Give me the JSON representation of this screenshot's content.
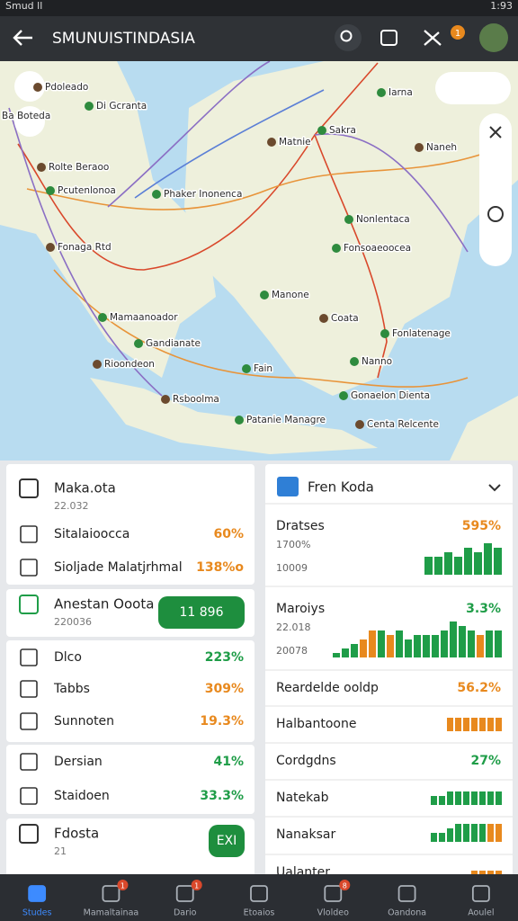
{
  "status_bar": {
    "carrier": "Smud ll",
    "time": "1:93"
  },
  "app_bar": {
    "title": "SMUNUISTINDASIA",
    "badge": "1"
  },
  "map": {
    "labels": [
      "Pdoleado",
      "Di Gcranta",
      "Ba Boteda",
      "Rolte Beraoo",
      "Pcutenlonoa",
      "Sakra",
      "Matnie",
      "Iarna",
      "Phaker Inonenca",
      "Naneh",
      "Nonlentaca",
      "Fonsoaeoocea",
      "Fonaga Rtd",
      "Manone",
      "Mamaanoador",
      "Coata",
      "Fonlatenage",
      "Gandianate",
      "Rioondeon",
      "Nanno",
      "Fain",
      "Rsboolma",
      "Gonaelon Dienta",
      "Patanie Managre",
      "Centa Relcente"
    ]
  },
  "left_cards": [
    {
      "title": "Maka.ota",
      "subtitle": "22.032",
      "rows": [
        {
          "label": "Sitalaioocca",
          "value": "60%",
          "color": "#e8891e"
        },
        {
          "label": "Sioljade Malatjrhmal",
          "value": "138%o",
          "color": "#e8891e"
        }
      ]
    },
    {
      "title": "Anestan Ooota",
      "subtitle": "220036",
      "button": "11 896"
    },
    {
      "rows": [
        {
          "label": "Dlco",
          "value": "223%",
          "color": "#1f9d48"
        },
        {
          "label": "Tabbs",
          "value": "309%",
          "color": "#e8891e"
        },
        {
          "label": "Sunnoten",
          "value": "19.3%",
          "color": "#e8891e"
        }
      ]
    },
    {
      "rows": [
        {
          "label": "Dersian",
          "value": "41%",
          "color": "#1f9d48"
        },
        {
          "label": "Staidoen",
          "value": "33.3%",
          "color": "#1f9d48"
        }
      ]
    },
    {
      "title": "Fdosta",
      "subtitle": "21",
      "button": "EXI"
    }
  ],
  "right_card": {
    "title": "Fren Koda",
    "items": [
      {
        "label": "Dratses",
        "value": "595%",
        "color": "#e8891e",
        "sub": [
          "1700%",
          "10009"
        ],
        "bars": [
          4,
          4,
          5,
          4,
          6,
          5,
          7,
          6
        ],
        "bar_colors": [
          "#1f9d48",
          "#1f9d48",
          "#1f9d48",
          "#1f9d48",
          "#1f9d48",
          "#1f9d48",
          "#1f9d48",
          "#1f9d48"
        ]
      },
      {
        "label": "Maroiys",
        "value": "3.3%",
        "color": "#1f9d48",
        "sub": [
          "22.018",
          "20078"
        ],
        "bars": [
          1,
          2,
          3,
          4,
          6,
          6,
          5,
          6,
          4,
          5,
          5,
          5,
          6,
          8,
          7,
          6,
          5,
          6,
          6
        ],
        "bar_colors": [
          "#1f9d48",
          "#1f9d48",
          "#1f9d48",
          "#e8891e",
          "#e8891e",
          "#1f9d48",
          "#e8891e",
          "#1f9d48",
          "#1f9d48",
          "#1f9d48",
          "#1f9d48",
          "#1f9d48",
          "#1f9d48",
          "#1f9d48",
          "#1f9d48",
          "#1f9d48",
          "#e8891e",
          "#1f9d48",
          "#1f9d48"
        ]
      },
      {
        "label": "Reardelde ooldp",
        "value": "56.2%",
        "color": "#e8891e"
      },
      {
        "label": "Halbantoone",
        "bars": [
          3,
          3,
          3,
          3,
          3,
          3,
          3
        ],
        "bar_colors": [
          "#e8891e",
          "#e8891e",
          "#e8891e",
          "#e8891e",
          "#e8891e",
          "#e8891e",
          "#e8891e"
        ]
      },
      {
        "label": "Cordgdns",
        "value": "27%",
        "color": "#1f9d48"
      },
      {
        "label": "Natekab",
        "bars": [
          2,
          2,
          3,
          3,
          3,
          3,
          3,
          3,
          3
        ],
        "bar_colors": [
          "#1f9d48",
          "#1f9d48",
          "#1f9d48",
          "#1f9d48",
          "#1f9d48",
          "#1f9d48",
          "#1f9d48",
          "#1f9d48",
          "#1f9d48"
        ]
      },
      {
        "label": "Nanaksar",
        "bars": [
          2,
          2,
          3,
          4,
          4,
          4,
          4,
          4,
          4
        ],
        "bar_colors": [
          "#1f9d48",
          "#1f9d48",
          "#1f9d48",
          "#1f9d48",
          "#1f9d48",
          "#1f9d48",
          "#1f9d48",
          "#e8891e",
          "#e8891e"
        ]
      },
      {
        "label": "Ualanter",
        "bars": [
          2,
          2,
          2,
          2
        ],
        "bar_colors": [
          "#e8891e",
          "#e8891e",
          "#e8891e",
          "#e8891e"
        ]
      }
    ]
  },
  "bottom_nav": [
    {
      "label": "Studes"
    },
    {
      "label": "Mamaltainaa",
      "badge": "1"
    },
    {
      "label": "Dario",
      "badge": "1"
    },
    {
      "label": "Etoaios"
    },
    {
      "label": "Vloldeo",
      "badge": "8"
    },
    {
      "label": "Oandona"
    },
    {
      "label": "Aoulel"
    }
  ]
}
